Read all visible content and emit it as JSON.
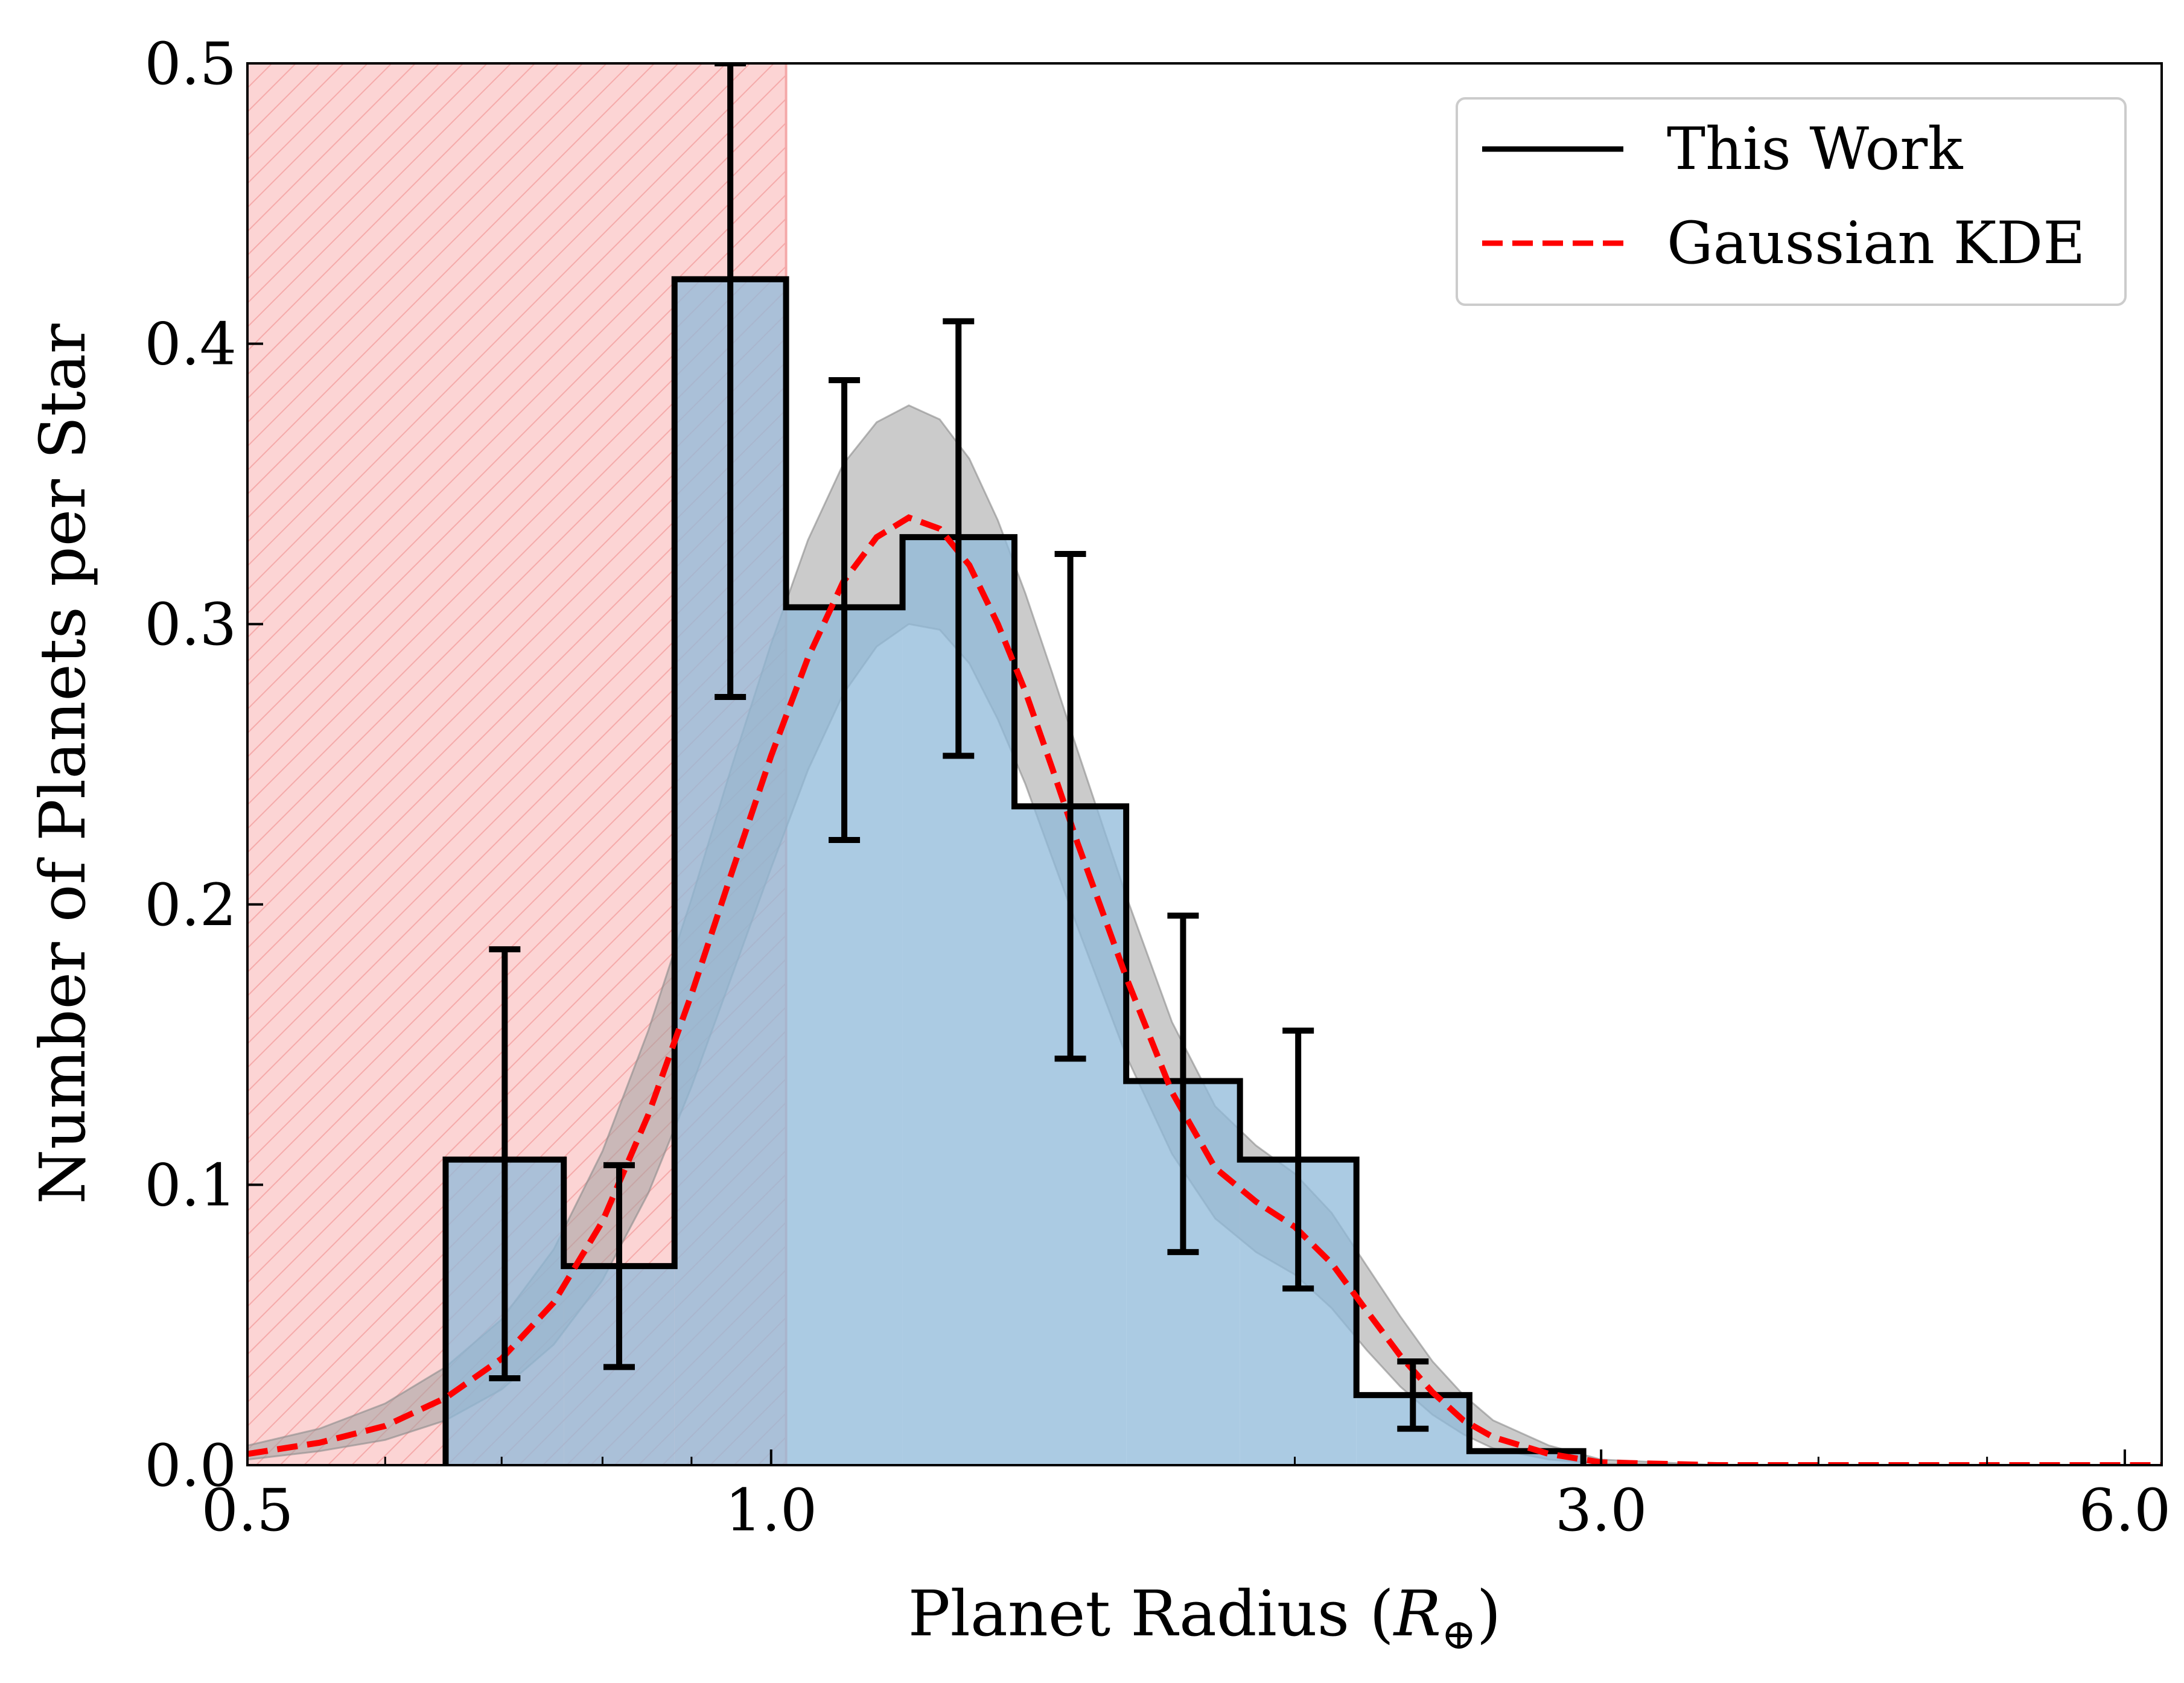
{
  "chart_data": {
    "type": "bar",
    "xscale": "log",
    "xlabel": "Planet Radius (R⊕)",
    "xlabel_base": "Planet Radius (",
    "xlabel_var": "R",
    "xlabel_sub": "⊕",
    "xlabel_close": ")",
    "ylabel": "Number of Planets per Star",
    "xlim": [
      0.5,
      6.3
    ],
    "ylim": [
      0.0,
      0.5
    ],
    "xticks": [
      {
        "value": 0.5,
        "label": "0.5"
      },
      {
        "value": 1.0,
        "label": "1.0"
      },
      {
        "value": 3.0,
        "label": "3.0"
      },
      {
        "value": 6.0,
        "label": "6.0"
      }
    ],
    "yticks": [
      {
        "value": 0.0,
        "label": "0.0"
      },
      {
        "value": 0.1,
        "label": "0.1"
      },
      {
        "value": 0.2,
        "label": "0.2"
      },
      {
        "value": 0.3,
        "label": "0.3"
      },
      {
        "value": 0.4,
        "label": "0.4"
      },
      {
        "value": 0.5,
        "label": "0.5"
      }
    ],
    "shaded_region": {
      "xmin": 0.5,
      "xmax": 1.02,
      "color": "#f8a0a0",
      "hatch": "diagonal"
    },
    "histogram": {
      "name": "This Work",
      "color": "#000000",
      "fill": "#8fb9d9",
      "bins": [
        {
          "x0": 0.65,
          "x1": 0.76,
          "value": 0.109,
          "err_low": 0.031,
          "err_high": 0.184
        },
        {
          "x0": 0.76,
          "x1": 0.88,
          "value": 0.071,
          "err_low": 0.035,
          "err_high": 0.107
        },
        {
          "x0": 0.88,
          "x1": 1.02,
          "value": 0.423,
          "err_low": 0.274,
          "err_high": 0.5
        },
        {
          "x0": 1.02,
          "x1": 1.19,
          "value": 0.306,
          "err_low": 0.223,
          "err_high": 0.387
        },
        {
          "x0": 1.19,
          "x1": 1.38,
          "value": 0.331,
          "err_low": 0.253,
          "err_high": 0.408
        },
        {
          "x0": 1.38,
          "x1": 1.6,
          "value": 0.235,
          "err_low": 0.145,
          "err_high": 0.325
        },
        {
          "x0": 1.6,
          "x1": 1.86,
          "value": 0.137,
          "err_low": 0.076,
          "err_high": 0.196
        },
        {
          "x0": 1.86,
          "x1": 2.17,
          "value": 0.109,
          "err_low": 0.063,
          "err_high": 0.155
        },
        {
          "x0": 2.17,
          "x1": 2.52,
          "value": 0.025,
          "err_low": 0.013,
          "err_high": 0.037
        },
        {
          "x0": 2.52,
          "x1": 2.93,
          "value": 0.005,
          "err_low": 0.0,
          "err_high": 0.01
        }
      ]
    },
    "kde": {
      "name": "Gaussian KDE",
      "color": "#ff0000",
      "band_color": "#a0a0a0",
      "points": [
        {
          "x": 0.5,
          "y": 0.004,
          "lo": 0.002,
          "hi": 0.007
        },
        {
          "x": 0.55,
          "y": 0.008,
          "lo": 0.005,
          "hi": 0.013
        },
        {
          "x": 0.6,
          "y": 0.014,
          "lo": 0.009,
          "hi": 0.022
        },
        {
          "x": 0.65,
          "y": 0.024,
          "lo": 0.016,
          "hi": 0.035
        },
        {
          "x": 0.7,
          "y": 0.038,
          "lo": 0.027,
          "hi": 0.052
        },
        {
          "x": 0.75,
          "y": 0.058,
          "lo": 0.043,
          "hi": 0.077
        },
        {
          "x": 0.8,
          "y": 0.087,
          "lo": 0.066,
          "hi": 0.112
        },
        {
          "x": 0.85,
          "y": 0.125,
          "lo": 0.097,
          "hi": 0.155
        },
        {
          "x": 0.9,
          "y": 0.168,
          "lo": 0.135,
          "hi": 0.202
        },
        {
          "x": 0.95,
          "y": 0.212,
          "lo": 0.175,
          "hi": 0.25
        },
        {
          "x": 1.0,
          "y": 0.253,
          "lo": 0.213,
          "hi": 0.293
        },
        {
          "x": 1.05,
          "y": 0.288,
          "lo": 0.248,
          "hi": 0.33
        },
        {
          "x": 1.1,
          "y": 0.315,
          "lo": 0.275,
          "hi": 0.357
        },
        {
          "x": 1.15,
          "y": 0.331,
          "lo": 0.292,
          "hi": 0.372
        },
        {
          "x": 1.2,
          "y": 0.338,
          "lo": 0.3,
          "hi": 0.378
        },
        {
          "x": 1.25,
          "y": 0.334,
          "lo": 0.298,
          "hi": 0.373
        },
        {
          "x": 1.3,
          "y": 0.321,
          "lo": 0.286,
          "hi": 0.359
        },
        {
          "x": 1.35,
          "y": 0.3,
          "lo": 0.266,
          "hi": 0.337
        },
        {
          "x": 1.4,
          "y": 0.276,
          "lo": 0.243,
          "hi": 0.311
        },
        {
          "x": 1.45,
          "y": 0.249,
          "lo": 0.217,
          "hi": 0.283
        },
        {
          "x": 1.5,
          "y": 0.222,
          "lo": 0.192,
          "hi": 0.255
        },
        {
          "x": 1.6,
          "y": 0.174,
          "lo": 0.146,
          "hi": 0.203
        },
        {
          "x": 1.7,
          "y": 0.133,
          "lo": 0.111,
          "hi": 0.158
        },
        {
          "x": 1.8,
          "y": 0.106,
          "lo": 0.088,
          "hi": 0.128
        },
        {
          "x": 1.9,
          "y": 0.094,
          "lo": 0.076,
          "hi": 0.114
        },
        {
          "x": 2.0,
          "y": 0.085,
          "lo": 0.068,
          "hi": 0.104
        },
        {
          "x": 2.1,
          "y": 0.072,
          "lo": 0.056,
          "hi": 0.09
        },
        {
          "x": 2.2,
          "y": 0.055,
          "lo": 0.041,
          "hi": 0.071
        },
        {
          "x": 2.3,
          "y": 0.039,
          "lo": 0.028,
          "hi": 0.053
        },
        {
          "x": 2.4,
          "y": 0.026,
          "lo": 0.018,
          "hi": 0.037
        },
        {
          "x": 2.5,
          "y": 0.016,
          "lo": 0.011,
          "hi": 0.025
        },
        {
          "x": 2.6,
          "y": 0.01,
          "lo": 0.006,
          "hi": 0.016
        },
        {
          "x": 2.8,
          "y": 0.004,
          "lo": 0.002,
          "hi": 0.007
        },
        {
          "x": 3.0,
          "y": 0.001,
          "lo": 0.0005,
          "hi": 0.002
        },
        {
          "x": 3.5,
          "y": 0.0,
          "lo": 0.0,
          "hi": 0.0
        },
        {
          "x": 4.5,
          "y": 0.0,
          "lo": 0.0,
          "hi": 0.0
        },
        {
          "x": 6.3,
          "y": 0.0,
          "lo": 0.0,
          "hi": 0.0
        }
      ]
    },
    "legend": {
      "position": "top-right",
      "entries": [
        {
          "label": "This Work",
          "color": "#000000",
          "style": "solid"
        },
        {
          "label": "Gaussian KDE",
          "color": "#ff0000",
          "style": "dashed"
        }
      ]
    }
  }
}
